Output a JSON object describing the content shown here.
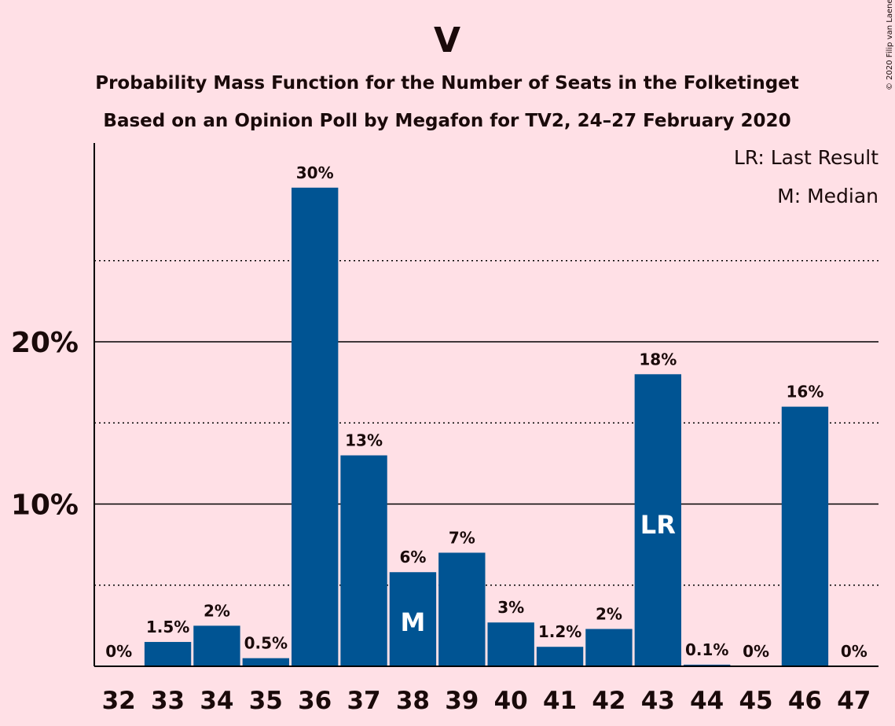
{
  "chart_data": {
    "type": "bar",
    "title": "V",
    "subtitle": [
      "Probability Mass Function for the Number of Seats in the Folketinget",
      "Based on an Opinion Poll by Megafon for TV2, 24–27 February 2020"
    ],
    "copyright": "© 2020 Filip van Laenen",
    "legend": [
      "LR: Last Result",
      "M: Median"
    ],
    "categories": [
      "32",
      "33",
      "34",
      "35",
      "36",
      "37",
      "38",
      "39",
      "40",
      "41",
      "42",
      "43",
      "44",
      "45",
      "46",
      "47"
    ],
    "values": [
      0,
      1.5,
      2.5,
      0.5,
      29.5,
      13,
      5.8,
      7,
      2.7,
      1.2,
      2.3,
      18,
      0.1,
      0,
      16,
      0
    ],
    "labels": [
      "0%",
      "1.5%",
      "2%",
      "0.5%",
      "30%",
      "13%",
      "6%",
      "7%",
      "3%",
      "1.2%",
      "2%",
      "18%",
      "0.1%",
      "0%",
      "16%",
      "0%"
    ],
    "markers": {
      "38": "M",
      "43": "LR"
    },
    "y_ticks": [
      {
        "value": 10,
        "label": "10%"
      },
      {
        "value": 20,
        "label": "20%"
      }
    ],
    "minor_gridlines": [
      5,
      15,
      25
    ],
    "ylim": [
      0,
      32
    ],
    "colors": {
      "bar": "#005493",
      "background": "#FFE0E6",
      "text": "#1a0a0a",
      "marker_text": "#ffffff"
    }
  }
}
